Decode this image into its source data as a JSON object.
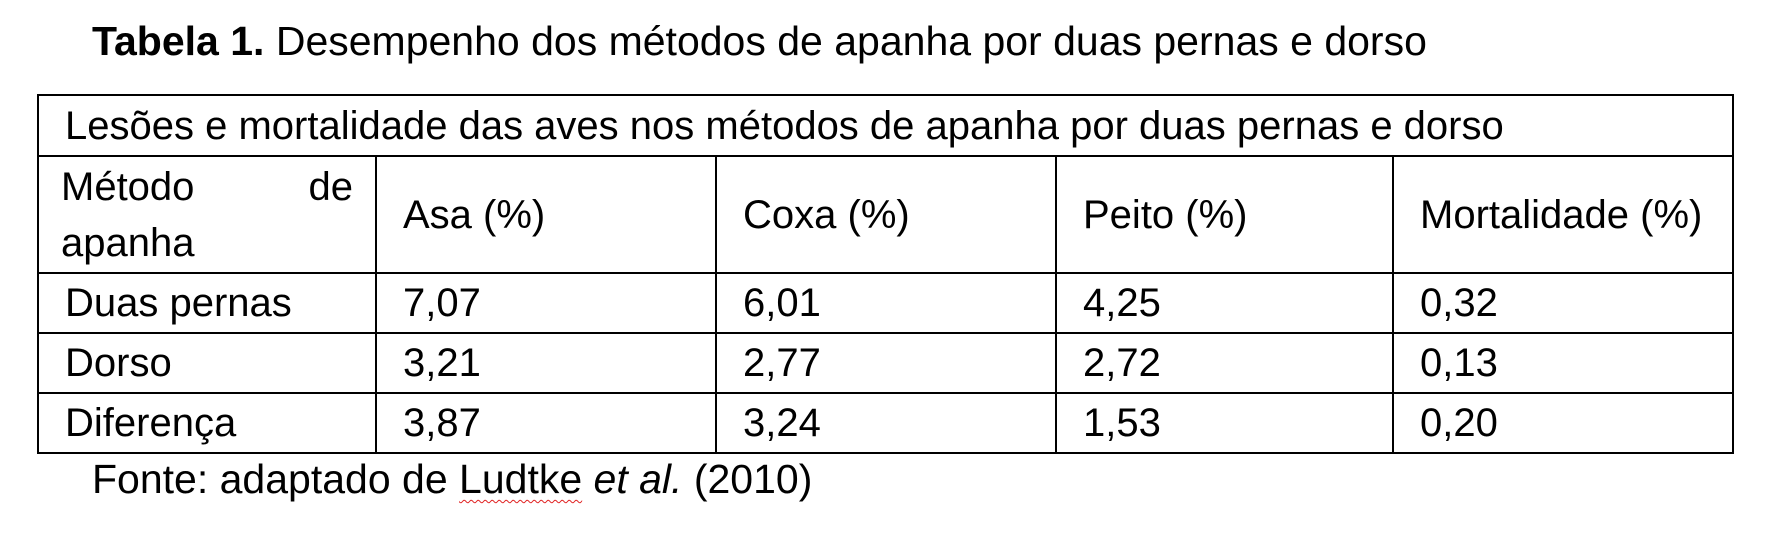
{
  "caption": {
    "lead": "Tabela 1.",
    "text": " Desempenho dos métodos de apanha por duas pernas e dorso"
  },
  "table": {
    "title": "Lesões e mortalidade das aves nos métodos de apanha por duas pernas e dorso",
    "headers": [
      "Método de apanha",
      "Asa (%)",
      "Coxa (%)",
      "Peito (%)",
      "Mortalidade (%)"
    ],
    "rows": [
      [
        "Duas pernas",
        "7,07",
        "6,01",
        "4,25",
        "0,32"
      ],
      [
        "Dorso",
        "3,21",
        "2,77",
        "2,72",
        "0,13"
      ],
      [
        "Diferença",
        "3,87",
        "3,24",
        "1,53",
        "0,20"
      ]
    ]
  },
  "source": {
    "prefix": "Fonte: adaptado de ",
    "author": "Ludtke",
    "etal": "et al.",
    "year": " (2010)"
  }
}
